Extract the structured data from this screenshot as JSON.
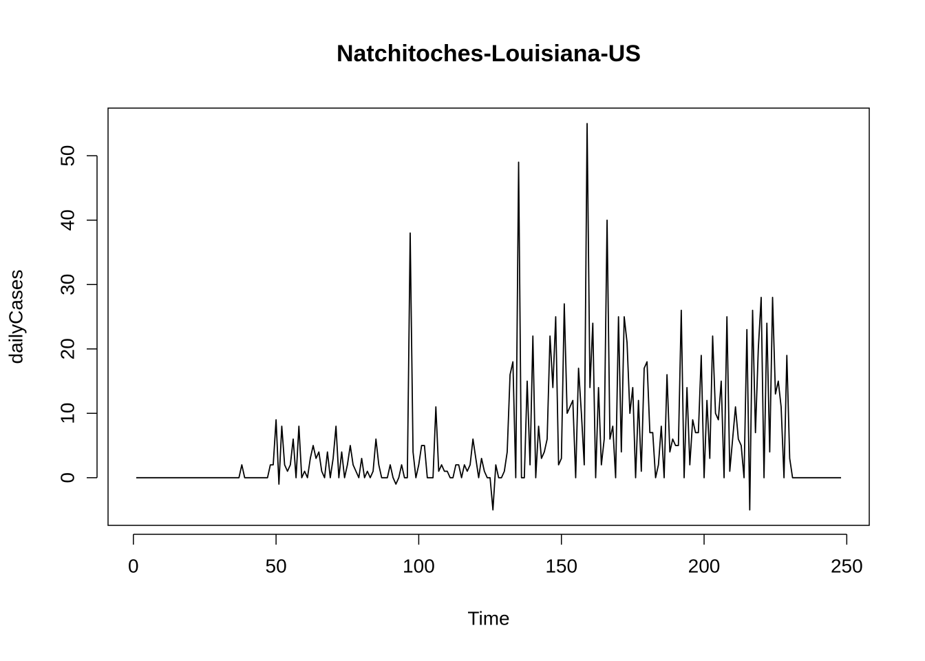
{
  "chart_data": {
    "type": "line",
    "title": "Natchitoches-Louisiana-US",
    "xlabel": "Time",
    "ylabel": "dailyCases",
    "color": "#000000",
    "x": [
      1,
      2,
      3,
      4,
      5,
      6,
      7,
      8,
      9,
      10,
      11,
      12,
      13,
      14,
      15,
      16,
      17,
      18,
      19,
      20,
      21,
      22,
      23,
      24,
      25,
      26,
      27,
      28,
      29,
      30,
      31,
      32,
      33,
      34,
      35,
      36,
      37,
      38,
      39,
      40,
      41,
      42,
      43,
      44,
      45,
      46,
      47,
      48,
      49,
      50,
      51,
      52,
      53,
      54,
      55,
      56,
      57,
      58,
      59,
      60,
      61,
      62,
      63,
      64,
      65,
      66,
      67,
      68,
      69,
      70,
      71,
      72,
      73,
      74,
      75,
      76,
      77,
      78,
      79,
      80,
      81,
      82,
      83,
      84,
      85,
      86,
      87,
      88,
      89,
      90,
      91,
      92,
      93,
      94,
      95,
      96,
      97,
      98,
      99,
      100,
      101,
      102,
      103,
      104,
      105,
      106,
      107,
      108,
      109,
      110,
      111,
      112,
      113,
      114,
      115,
      116,
      117,
      118,
      119,
      120,
      121,
      122,
      123,
      124,
      125,
      126,
      127,
      128,
      129,
      130,
      131,
      132,
      133,
      134,
      135,
      136,
      137,
      138,
      139,
      140,
      141,
      142,
      143,
      144,
      145,
      146,
      147,
      148,
      149,
      150,
      151,
      152,
      153,
      154,
      155,
      156,
      157,
      158,
      159,
      160,
      161,
      162,
      163,
      164,
      165,
      166,
      167,
      168,
      169,
      170,
      171,
      172,
      173,
      174,
      175,
      176,
      177,
      178,
      179,
      180,
      181,
      182,
      183,
      184,
      185,
      186,
      187,
      188,
      189,
      190,
      191,
      192,
      193,
      194,
      195,
      196,
      197,
      198,
      199,
      200,
      201,
      202,
      203,
      204,
      205,
      206,
      207,
      208,
      209,
      210,
      211,
      212,
      213,
      214,
      215,
      216,
      217,
      218,
      219,
      220,
      221,
      222,
      223,
      224,
      225,
      226,
      227,
      228,
      229,
      230,
      231,
      232,
      233,
      234,
      235,
      236,
      237,
      238,
      239,
      240,
      241,
      242,
      243,
      244,
      245,
      246,
      247,
      248
    ],
    "values": [
      0,
      0,
      0,
      0,
      0,
      0,
      0,
      0,
      0,
      0,
      0,
      0,
      0,
      0,
      0,
      0,
      0,
      0,
      0,
      0,
      0,
      0,
      0,
      0,
      0,
      0,
      0,
      0,
      0,
      0,
      0,
      0,
      0,
      0,
      0,
      0,
      0,
      2,
      0,
      0,
      0,
      0,
      0,
      0,
      0,
      0,
      0,
      2,
      2,
      9,
      -1,
      8,
      2,
      1,
      2,
      6,
      0,
      8,
      0,
      1,
      0,
      3,
      5,
      3,
      4,
      1,
      0,
      4,
      0,
      3,
      8,
      0,
      4,
      0,
      2,
      5,
      2,
      1,
      0,
      3,
      0,
      1,
      0,
      1,
      6,
      2,
      0,
      0,
      0,
      2,
      0,
      -1,
      0,
      2,
      0,
      0,
      38,
      4,
      0,
      2,
      5,
      5,
      0,
      0,
      0,
      11,
      1,
      2,
      1,
      1,
      0,
      0,
      2,
      2,
      0,
      2,
      1,
      2,
      6,
      3,
      0,
      3,
      1,
      0,
      0,
      -5,
      2,
      0,
      0,
      1,
      4,
      16,
      18,
      0,
      49,
      0,
      0,
      15,
      2,
      22,
      0,
      8,
      3,
      4,
      6,
      22,
      14,
      25,
      2,
      3,
      27,
      10,
      11,
      12,
      0,
      17,
      10,
      2,
      55,
      14,
      24,
      0,
      14,
      2,
      6,
      40,
      6,
      8,
      0,
      25,
      4,
      25,
      21,
      10,
      14,
      0,
      12,
      1,
      17,
      18,
      7,
      7,
      0,
      2,
      8,
      0,
      16,
      4,
      6,
      5,
      5,
      26,
      0,
      14,
      2,
      9,
      7,
      7,
      19,
      0,
      12,
      3,
      22,
      10,
      9,
      15,
      0,
      25,
      1,
      6,
      11,
      6,
      5,
      0,
      23,
      -5,
      26,
      7,
      20,
      28,
      0,
      24,
      4,
      28,
      13,
      15,
      11,
      0,
      19,
      3,
      0,
      0,
      0,
      0,
      0,
      0,
      0,
      0,
      0,
      0,
      0,
      0,
      0,
      0,
      0,
      0,
      0,
      0
    ],
    "xlim": [
      -8.88,
      257.88
    ],
    "xticks": [
      0,
      50,
      100,
      150,
      200,
      250
    ],
    "ylim": [
      -7.4,
      57.4
    ],
    "yticks": [
      0,
      10,
      20,
      30,
      40,
      50
    ]
  }
}
